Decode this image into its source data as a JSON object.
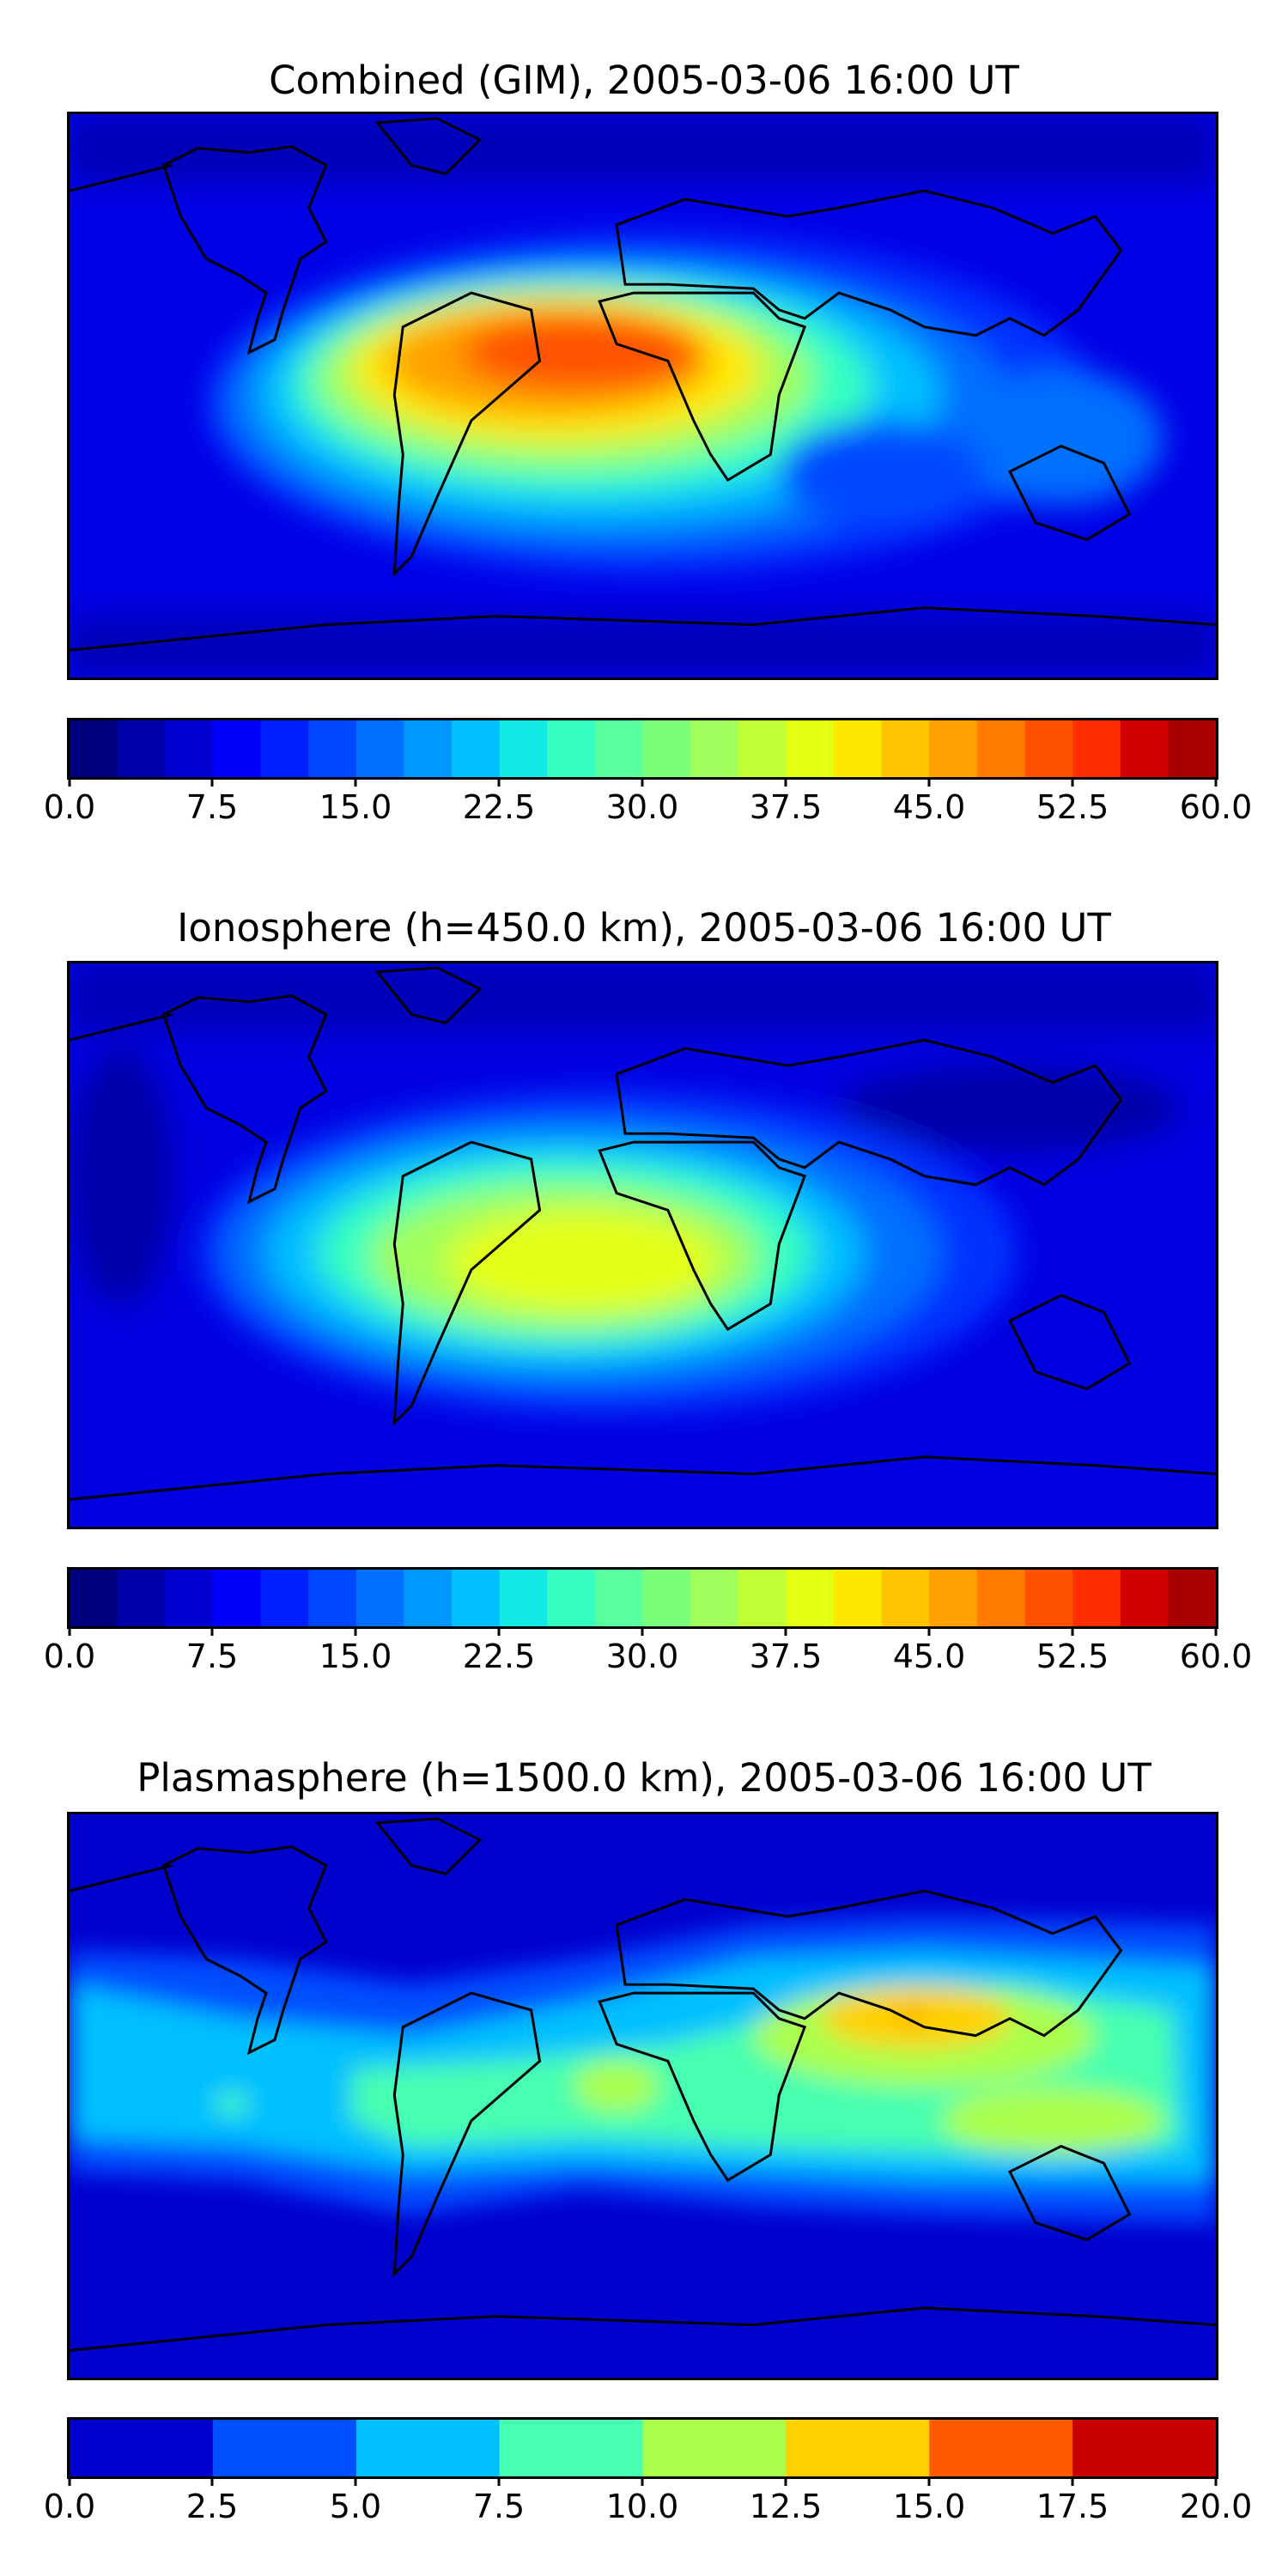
{
  "panels": [
    {
      "title": "Combined (GIM), 2005-03-06 16:00 UT",
      "colorbar": {
        "ticks": [
          "0.0",
          "7.5",
          "15.0",
          "22.5",
          "30.0",
          "37.5",
          "45.0",
          "52.5",
          "60.0"
        ],
        "min": 0,
        "max": 60,
        "levels": 24,
        "colors": [
          "#00007f",
          "#0000a8",
          "#0000d1",
          "#0000fa",
          "#0020ff",
          "#0048ff",
          "#0070ff",
          "#0098ff",
          "#00c0ff",
          "#12e8e4",
          "#36ffc1",
          "#5affa0",
          "#7bff7b",
          "#a0ff5a",
          "#c1ff36",
          "#e4ff12",
          "#ffe800",
          "#ffc400",
          "#ffa000",
          "#ff7c00",
          "#ff5200",
          "#ff2e00",
          "#d10000",
          "#a80000"
        ]
      }
    },
    {
      "title": "Ionosphere  (h=450.0 km), 2005-03-06 16:00 UT",
      "colorbar": {
        "ticks": [
          "0.0",
          "7.5",
          "15.0",
          "22.5",
          "30.0",
          "37.5",
          "45.0",
          "52.5",
          "60.0"
        ],
        "min": 0,
        "max": 60,
        "levels": 24,
        "colors": [
          "#00007f",
          "#0000a8",
          "#0000d1",
          "#0000fa",
          "#0020ff",
          "#0048ff",
          "#0070ff",
          "#0098ff",
          "#00c0ff",
          "#12e8e4",
          "#36ffc1",
          "#5affa0",
          "#7bff7b",
          "#a0ff5a",
          "#c1ff36",
          "#e4ff12",
          "#ffe800",
          "#ffc400",
          "#ffa000",
          "#ff7c00",
          "#ff5200",
          "#ff2e00",
          "#d10000",
          "#a80000"
        ]
      }
    },
    {
      "title": "Plasmasphere (h=1500.0 km), 2005-03-06 16:00 UT",
      "colorbar": {
        "ticks": [
          "0.0",
          "2.5",
          "5.0",
          "7.5",
          "10.0",
          "12.5",
          "15.0",
          "17.5",
          "20.0"
        ],
        "min": 0,
        "max": 20,
        "levels": 8,
        "colors": [
          "#0000cd",
          "#0050ff",
          "#00c0ff",
          "#47ffb0",
          "#aaff4d",
          "#ffd000",
          "#ff5a00",
          "#c80000"
        ]
      }
    }
  ]
}
